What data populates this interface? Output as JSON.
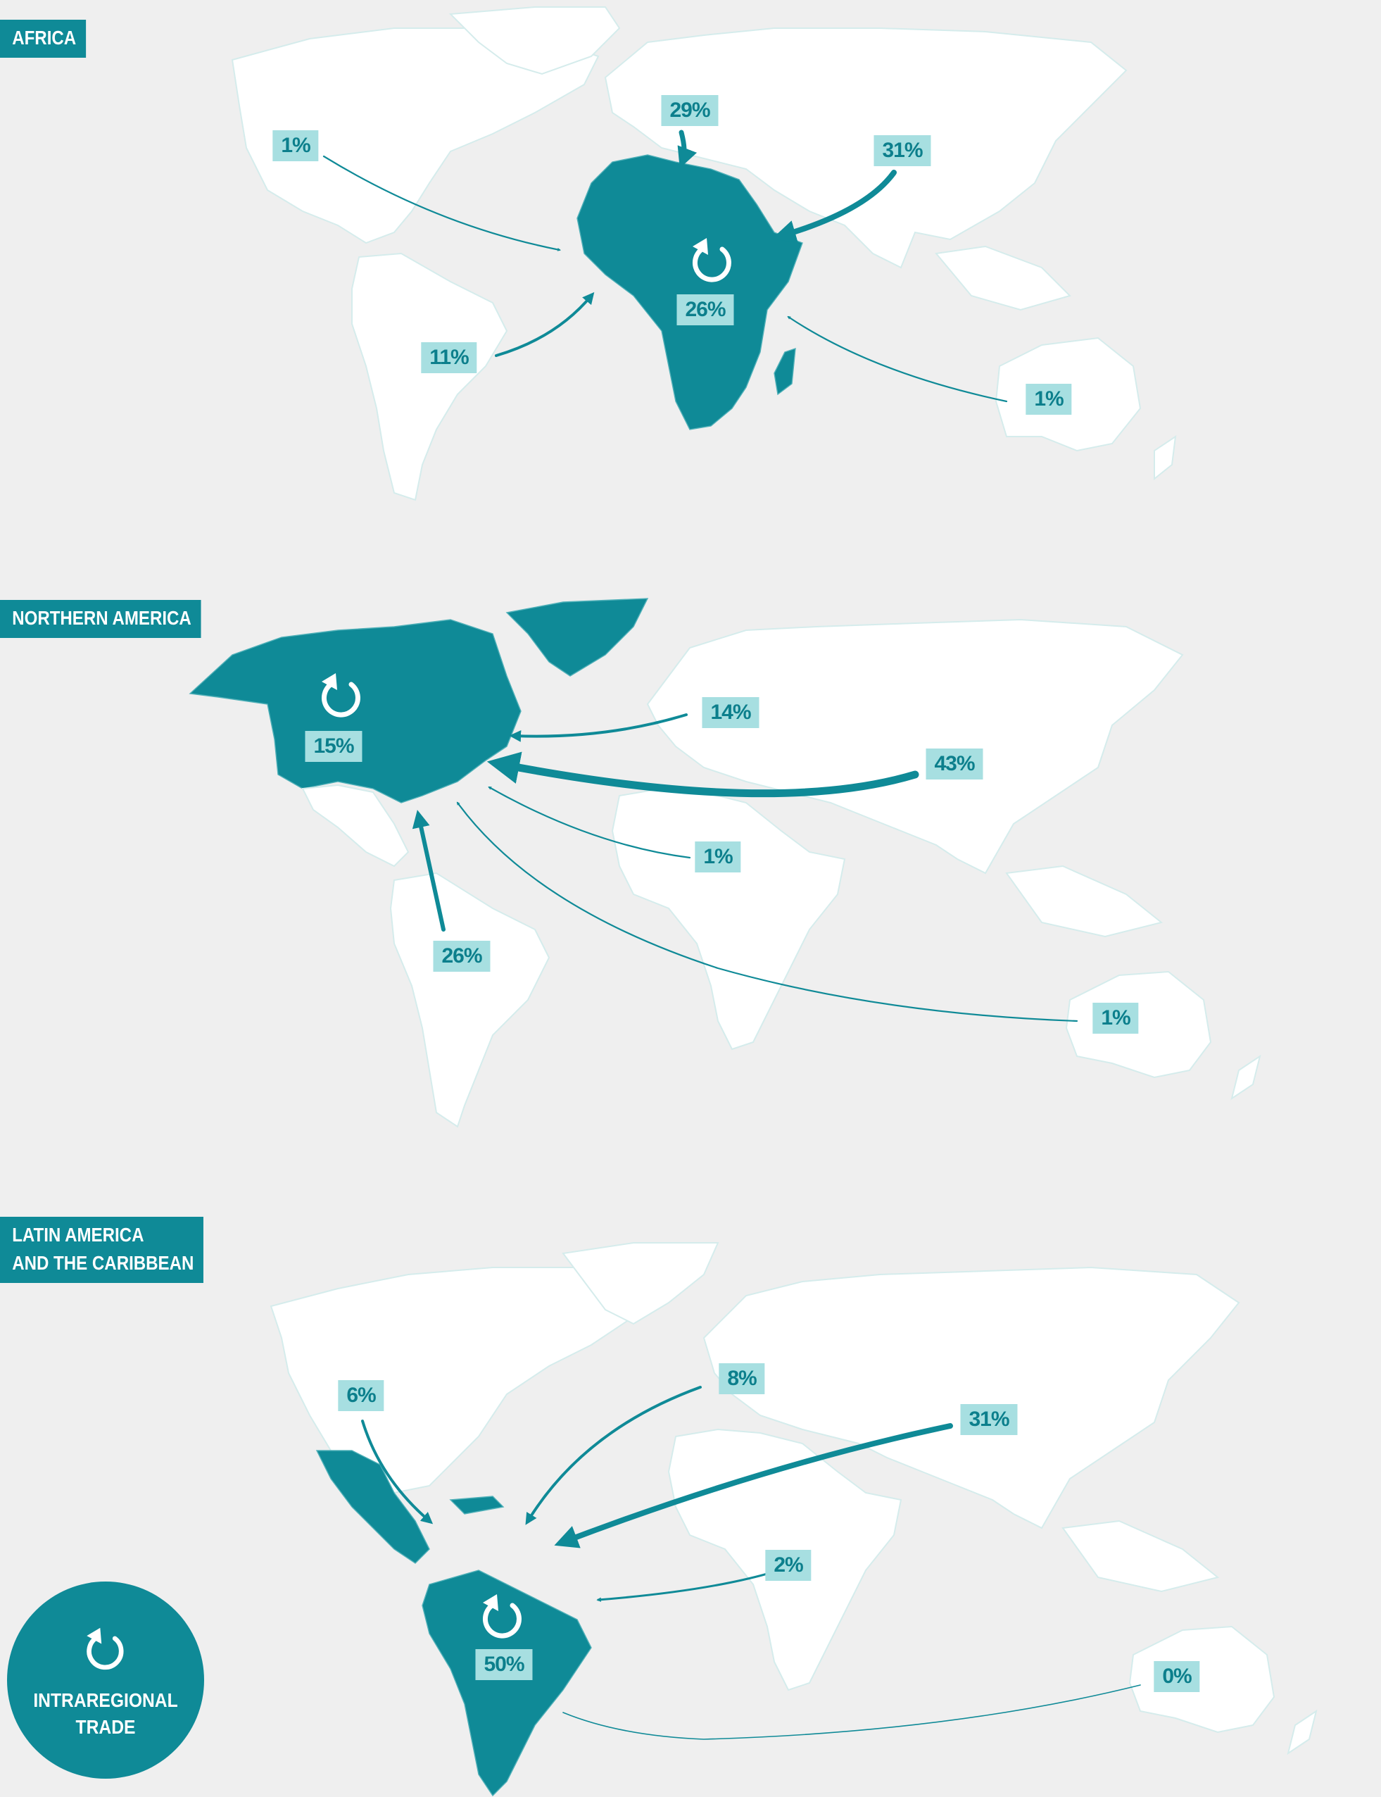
{
  "panels": [
    {
      "title": "AFRICA",
      "flows": [
        {
          "value": "1%"
        },
        {
          "value": "29%"
        },
        {
          "value": "31%"
        },
        {
          "value": "26%"
        },
        {
          "value": "11%"
        },
        {
          "value": "1%"
        }
      ]
    },
    {
      "title": "NORTHERN AMERICA",
      "flows": [
        {
          "value": "15%"
        },
        {
          "value": "14%"
        },
        {
          "value": "43%"
        },
        {
          "value": "1%"
        },
        {
          "value": "26%"
        },
        {
          "value": "1%"
        }
      ]
    },
    {
      "title": "LATIN AMERICA\nAND THE CARIBBEAN",
      "flows": [
        {
          "value": "6%"
        },
        {
          "value": "8%"
        },
        {
          "value": "31%"
        },
        {
          "value": "2%"
        },
        {
          "value": "50%"
        },
        {
          "value": "0%"
        }
      ]
    }
  ],
  "legend": {
    "label": "INTRAREGIONAL\nTRADE",
    "icon": "circular-arrow-icon"
  },
  "colors": {
    "highlight": "#0f8a97",
    "label_bg": "#a7dfe1",
    "land": "#ffffff",
    "ocean": "#efefef"
  }
}
